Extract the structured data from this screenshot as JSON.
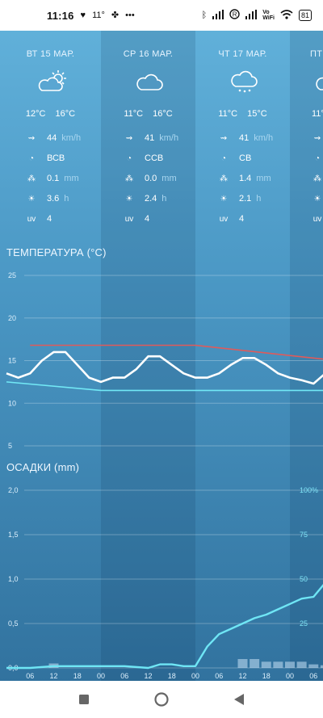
{
  "status_bar": {
    "time": "11:16",
    "temperature": "11°",
    "battery": "81",
    "icons": [
      "heart-icon",
      "fan-icon",
      "more-dots-icon",
      "bluetooth-icon",
      "signal-icon",
      "roaming-icon",
      "signal-2-icon",
      "vowifi-icon",
      "wifi-icon",
      "battery-icon"
    ]
  },
  "days": [
    {
      "title": "ВТ 15 МАР.",
      "icon": "sun-cloud-icon",
      "t_min": "12°C",
      "t_max": "16°C",
      "wind": "44",
      "wind_unit": "km/h",
      "direction": "ВСВ",
      "precip": "0.1",
      "precip_unit": "mm",
      "sun": "3.6",
      "sun_unit": "h",
      "uv_label": "uv",
      "uv": "4"
    },
    {
      "title": "СР 16 МАР.",
      "icon": "cloud-icon",
      "t_min": "11°C",
      "t_max": "16°C",
      "wind": "41",
      "wind_unit": "km/h",
      "direction": "ССВ",
      "precip": "0.0",
      "precip_unit": "mm",
      "sun": "2.4",
      "sun_unit": "h",
      "uv_label": "uv",
      "uv": "4"
    },
    {
      "title": "ЧТ 17 МАР.",
      "icon": "cloud-rain-icon",
      "t_min": "11°C",
      "t_max": "15°C",
      "wind": "41",
      "wind_unit": "km/h",
      "direction": "СВ",
      "precip": "1.4",
      "precip_unit": "mm",
      "sun": "2.1",
      "sun_unit": "h",
      "uv_label": "uv",
      "uv": "4"
    },
    {
      "title": "ПТ",
      "icon": "cloud-icon",
      "t_min": "11°",
      "t_max": "",
      "wind": "",
      "wind_unit": "",
      "direction": "",
      "precip": "",
      "precip_unit": "",
      "sun": "",
      "sun_unit": "",
      "uv_label": "uv",
      "uv": ""
    }
  ],
  "temperature_chart_title": "ТЕМПЕРАТУРА (°C)",
  "precip_chart_title": "ОСАДКИ (mm)",
  "chart_data": [
    {
      "type": "line",
      "title": "ТЕМПЕРАТУРА (°C)",
      "ylim": [
        5,
        25
      ],
      "yticks": [
        "5",
        "10",
        "15",
        "20",
        "25"
      ],
      "grid": true,
      "x_hours": [
        0,
        3,
        6,
        9,
        12,
        15,
        18,
        21,
        24,
        27,
        30,
        33,
        36,
        39,
        42,
        45,
        48,
        51,
        54,
        57,
        60,
        63,
        66,
        69,
        72,
        75,
        78,
        81
      ],
      "series": [
        {
          "color": "#ffffff",
          "values": [
            13.5,
            13,
            13.5,
            15,
            16,
            16,
            14.5,
            13,
            12.5,
            13,
            13,
            14,
            15.5,
            15.5,
            14.5,
            13.5,
            13,
            13,
            13.5,
            14.5,
            15.3,
            15.3,
            14.5,
            13.5,
            13,
            12.7,
            12.3,
            13.5
          ]
        },
        {
          "color": "#e05a5a",
          "x": [
            6,
            24,
            48,
            84
          ],
          "values": [
            16.8,
            16.8,
            16.8,
            15
          ]
        },
        {
          "color": "#72e8f5",
          "x": [
            0,
            24,
            48,
            84
          ],
          "values": [
            12.5,
            11.5,
            11.5,
            11.5
          ]
        }
      ]
    },
    {
      "type": "bar",
      "title": "ОСАДКИ (mm)",
      "ylim": [
        0,
        2.0
      ],
      "yticks": [
        "0,0",
        "0,5",
        "1,0",
        "1,5",
        "2,0"
      ],
      "y2ticks": [
        "25",
        "50",
        "75",
        "100%"
      ],
      "xticks": [
        "06",
        "12",
        "18",
        "00",
        "06",
        "12",
        "18",
        "00",
        "06",
        "12",
        "18",
        "00",
        "06"
      ],
      "grid": true,
      "bar_hours": [
        12,
        60,
        63,
        66,
        69,
        72,
        75,
        78,
        81
      ],
      "bar_values": [
        0.05,
        0.1,
        0.1,
        0.07,
        0.07,
        0.07,
        0.07,
        0.04,
        0.03
      ],
      "probability_series": {
        "color": "#6fe6f5",
        "x_hours": [
          0,
          6,
          12,
          18,
          24,
          30,
          36,
          39,
          42,
          45,
          48,
          51,
          54,
          57,
          60,
          63,
          66,
          69,
          72,
          75,
          78,
          81,
          84
        ],
        "values": [
          0,
          0,
          1,
          1,
          1,
          1,
          0,
          2,
          2,
          1,
          1,
          12,
          19,
          22,
          25,
          28,
          30,
          33,
          36,
          39,
          40,
          48,
          42
        ]
      }
    }
  ]
}
